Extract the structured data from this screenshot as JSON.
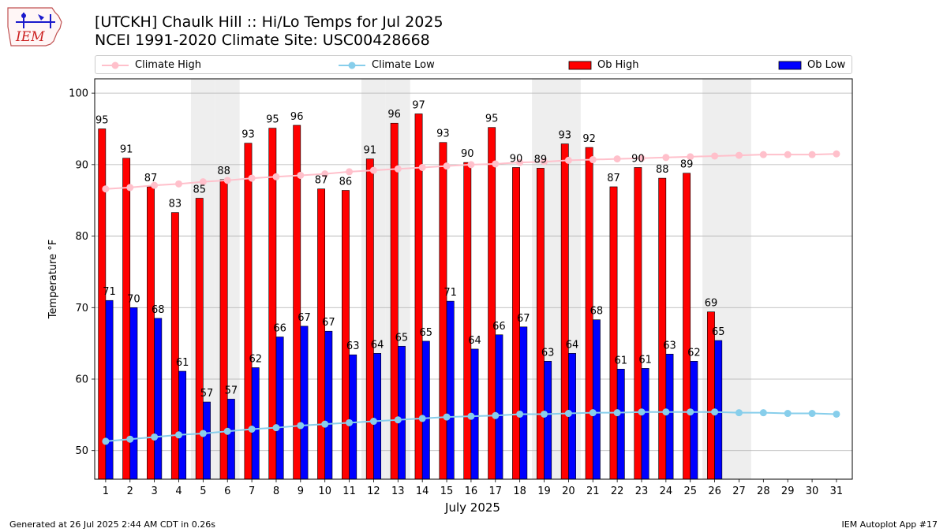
{
  "header": {
    "title_line1": "[UTCKH] Chaulk Hill  :: Hi/Lo Temps for Jul 2025",
    "title_line2": "NCEI 1991-2020 Climate Site: USC00428668"
  },
  "logo": {
    "text": "IEM"
  },
  "legend": {
    "climate_high": "Climate High",
    "climate_low": "Climate Low",
    "ob_high": "Ob High",
    "ob_low": "Ob Low"
  },
  "footer": {
    "generated": "Generated at 26 Jul 2025 2:44 AM CDT in 0.26s",
    "app": "IEM Autoplot App #17"
  },
  "colors": {
    "ob_high": "#ff0000",
    "ob_low": "#0000ff",
    "climate_high": "#ffc0cb",
    "climate_low": "#87ceeb",
    "weekend_shade": "#eeeeee",
    "grid": "#b0b0b0"
  },
  "chart_data": {
    "type": "bar",
    "xlabel": "July 2025",
    "ylabel": "Temperature °F",
    "ylim": [
      46,
      102
    ],
    "yticks": [
      50,
      60,
      70,
      80,
      90,
      100
    ],
    "grid": "horizontal",
    "legend_position": "top",
    "categories": [
      "1",
      "2",
      "3",
      "4",
      "5",
      "6",
      "7",
      "8",
      "9",
      "10",
      "11",
      "12",
      "13",
      "14",
      "15",
      "16",
      "17",
      "18",
      "19",
      "20",
      "21",
      "22",
      "23",
      "24",
      "25",
      "26",
      "27",
      "28",
      "29",
      "30",
      "31"
    ],
    "weekend_days": [
      5,
      6,
      12,
      13,
      19,
      20,
      26,
      27
    ],
    "series": [
      {
        "name": "Ob High",
        "kind": "bar",
        "values": [
          95.0,
          90.9,
          86.9,
          83.3,
          85.3,
          87.9,
          93.0,
          95.1,
          95.5,
          86.6,
          86.4,
          90.8,
          95.8,
          97.1,
          93.1,
          90.3,
          95.2,
          89.6,
          89.5,
          92.9,
          92.4,
          86.9,
          89.6,
          88.1,
          88.8,
          69.4,
          null,
          null,
          null,
          null,
          null
        ],
        "labels": [
          95,
          91,
          87,
          83,
          85,
          88,
          93,
          95,
          96,
          87,
          86,
          91,
          96,
          97,
          93,
          90,
          95,
          90,
          89,
          93,
          92,
          87,
          90,
          88,
          89,
          69,
          null,
          null,
          null,
          null,
          null
        ]
      },
      {
        "name": "Ob Low",
        "kind": "bar",
        "values": [
          71.0,
          70.0,
          68.5,
          61.1,
          56.8,
          57.2,
          61.6,
          65.9,
          67.4,
          66.7,
          63.4,
          63.6,
          64.6,
          65.3,
          70.9,
          64.2,
          66.2,
          67.3,
          62.5,
          63.6,
          68.3,
          61.4,
          61.5,
          63.5,
          62.5,
          65.4,
          null,
          null,
          null,
          null,
          null
        ],
        "labels": [
          71,
          70,
          68,
          61,
          57,
          57,
          62,
          66,
          67,
          67,
          63,
          64,
          65,
          65,
          71,
          64,
          66,
          67,
          63,
          64,
          68,
          61,
          61,
          63,
          62,
          65,
          null,
          null,
          null,
          null,
          null
        ]
      },
      {
        "name": "Climate High",
        "kind": "line",
        "values": [
          86.6,
          86.8,
          87.1,
          87.3,
          87.6,
          87.8,
          88.1,
          88.3,
          88.5,
          88.7,
          89.0,
          89.2,
          89.4,
          89.6,
          89.8,
          90.0,
          90.1,
          90.3,
          90.4,
          90.6,
          90.7,
          90.8,
          90.9,
          91.0,
          91.1,
          91.2,
          91.3,
          91.4,
          91.4,
          91.4,
          91.5
        ]
      },
      {
        "name": "Climate Low",
        "kind": "line",
        "values": [
          51.3,
          51.6,
          51.9,
          52.2,
          52.4,
          52.7,
          53.0,
          53.2,
          53.5,
          53.7,
          53.9,
          54.1,
          54.3,
          54.5,
          54.7,
          54.8,
          54.9,
          55.1,
          55.1,
          55.2,
          55.3,
          55.3,
          55.4,
          55.4,
          55.4,
          55.4,
          55.3,
          55.3,
          55.2,
          55.2,
          55.1
        ]
      }
    ]
  }
}
